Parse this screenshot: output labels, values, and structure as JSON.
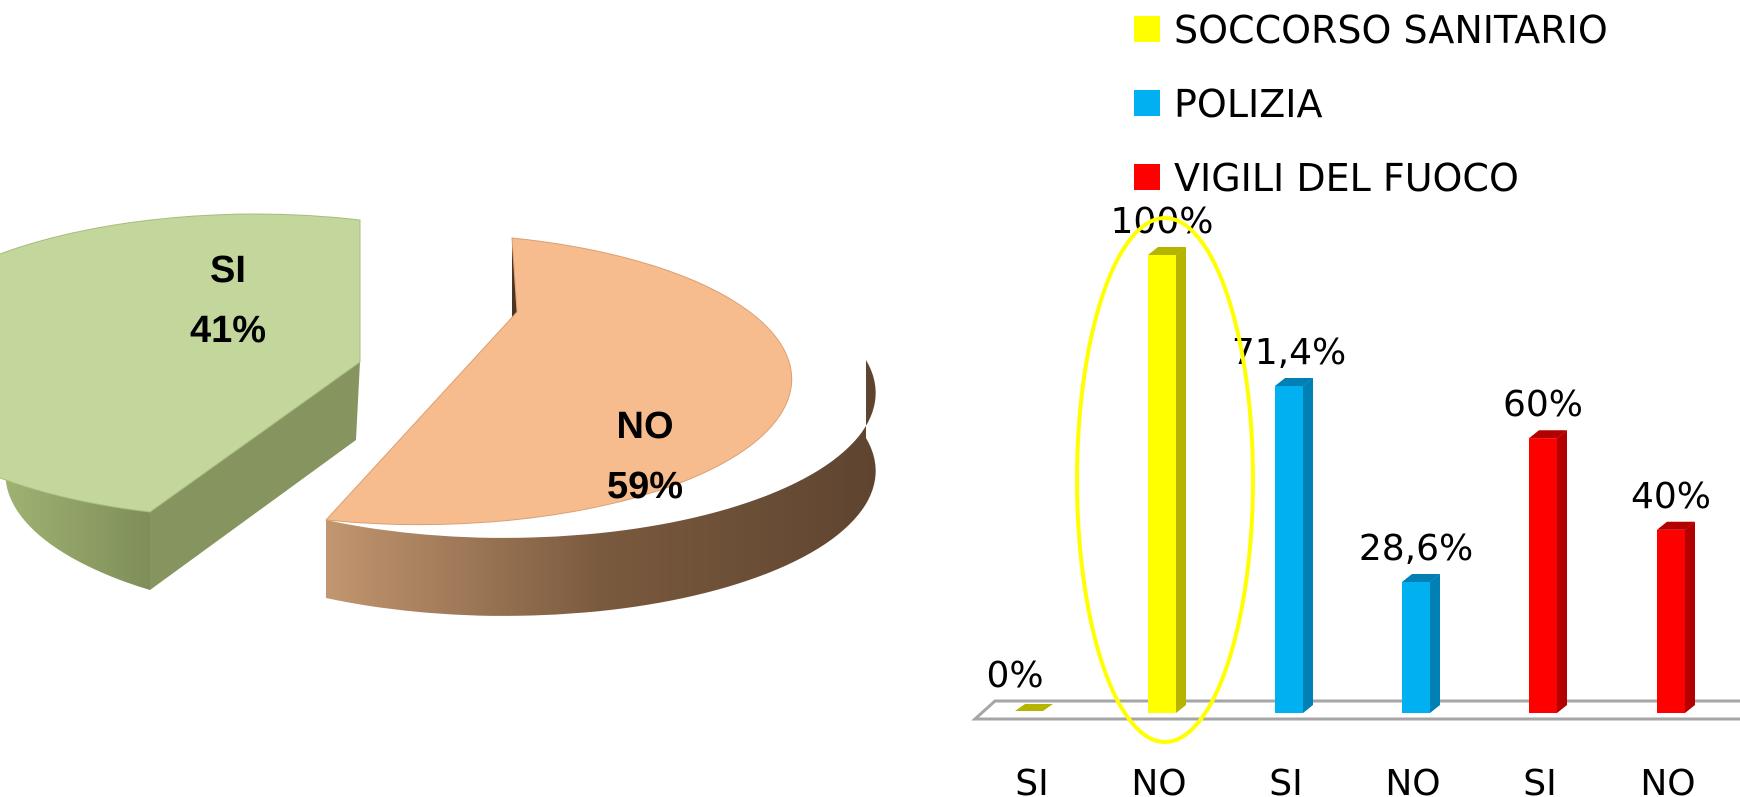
{
  "chart_data": [
    {
      "type": "pie",
      "three_d": true,
      "exploded": true,
      "slices": [
        {
          "label": "SI",
          "percent_label": "41%",
          "value": 41,
          "color": "#c3d69b",
          "side_color": "#8b9a64"
        },
        {
          "label": "NO",
          "percent_label": "59%",
          "value": 59,
          "color": "#f7bc8e",
          "side_color": "#7a5a3e"
        }
      ]
    },
    {
      "type": "bar",
      "three_d": true,
      "legend_position": "top",
      "categories": [
        "SI",
        "NO",
        "SI",
        "NO",
        "SI",
        "NO"
      ],
      "series": [
        {
          "name": "SOCCORSO SANITARIO",
          "color": "#ffff00",
          "side_color": "#b5b500"
        },
        {
          "name": "POLIZIA",
          "color": "#00b0f0",
          "side_color": "#0080b5"
        },
        {
          "name": "VIGILI DEL FUOCO",
          "color": "#ff0000",
          "side_color": "#b30000"
        }
      ],
      "bars": [
        {
          "series": 0,
          "category_index": 0,
          "value": 0,
          "label": "0%"
        },
        {
          "series": 0,
          "category_index": 1,
          "value": 100,
          "label": "100%"
        },
        {
          "series": 1,
          "category_index": 2,
          "value": 71.4,
          "label": "71,4%"
        },
        {
          "series": 1,
          "category_index": 3,
          "value": 28.6,
          "label": "28,6%"
        },
        {
          "series": 2,
          "category_index": 4,
          "value": 60,
          "label": "60%"
        },
        {
          "series": 2,
          "category_index": 5,
          "value": 40,
          "label": "40%"
        }
      ],
      "ylim": [
        0,
        100
      ],
      "highlight": {
        "category_index": 1,
        "shape": "ellipse",
        "color": "#ffff00"
      }
    }
  ]
}
